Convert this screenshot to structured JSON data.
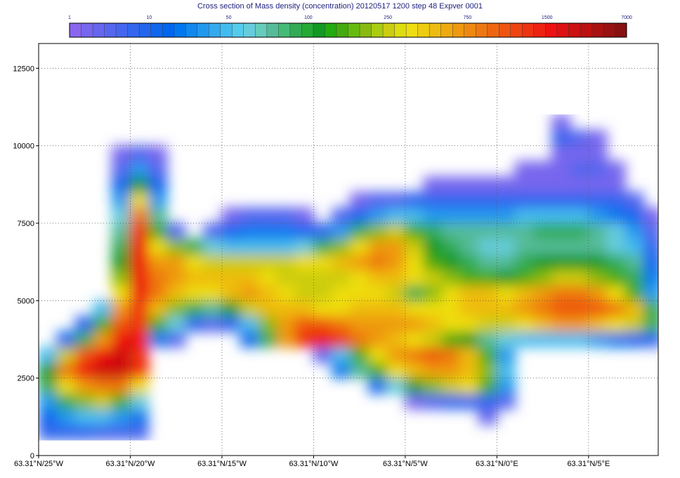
{
  "chart_data": {
    "type": "heatmap",
    "title": "Cross section of Mass density (concentration) 20120517 1200 step 48 Expver 0001",
    "xlabel": "",
    "ylabel": "",
    "x_ticks": [
      {
        "value": -25,
        "label": "63.31°N/25°W"
      },
      {
        "value": -20,
        "label": "63.31°N/20°W"
      },
      {
        "value": -15,
        "label": "63.31°N/15°W"
      },
      {
        "value": -10,
        "label": "63.31°N/10°W"
      },
      {
        "value": -5,
        "label": "63.31°N/5°W"
      },
      {
        "value": 0,
        "label": "63.31°N/0°E"
      },
      {
        "value": 5,
        "label": "63.31°N/5°E"
      }
    ],
    "xlim": [
      -25,
      8.8
    ],
    "y_ticks": [
      0,
      2500,
      5000,
      7500,
      10000,
      12500
    ],
    "ylim": [
      0,
      13300
    ],
    "grid": true,
    "colorbar": {
      "labels": [
        "1",
        "10",
        "50",
        "100",
        "250",
        "750",
        "1500",
        "7000"
      ],
      "colors": [
        "#8866ee",
        "#7766ee",
        "#6666ee",
        "#5566ee",
        "#4466ee",
        "#3366ee",
        "#2266ee",
        "#1166ee",
        "#0066ee",
        "#0077ee",
        "#1188ee",
        "#2299ee",
        "#33aaee",
        "#44bbee",
        "#55ccee",
        "#66ccdd",
        "#66ccbb",
        "#55bb99",
        "#44bb77",
        "#33aa55",
        "#22aa33",
        "#119922",
        "#22aa11",
        "#44aa11",
        "#66bb11",
        "#88bb11",
        "#aacc11",
        "#cccc11",
        "#dddd11",
        "#eedd11",
        "#eecc11",
        "#eebb11",
        "#eeaa11",
        "#ee9911",
        "#ee8811",
        "#ee7711",
        "#ee6611",
        "#ee5511",
        "#ee4411",
        "#ee3311",
        "#ee2211",
        "#ee1111",
        "#dd1111",
        "#cc1111",
        "#bb1111",
        "#aa1111",
        "#991111",
        "#881111"
      ]
    },
    "cells_x": [
      -25,
      -24,
      -23,
      -22,
      -21,
      -20,
      -19,
      -18,
      -17,
      -16,
      -15,
      -14,
      -13,
      -12,
      -11,
      -10,
      -9,
      -8,
      -7,
      -6,
      -5,
      -4,
      -3,
      -2,
      -1,
      0,
      1,
      2,
      3,
      4,
      5,
      6,
      7,
      8
    ],
    "cells_y": [
      500,
      1000,
      1500,
      2000,
      2500,
      3000,
      3500,
      4000,
      4500,
      5000,
      5500,
      6000,
      6500,
      7000,
      7500,
      8000,
      8500,
      9000,
      9500,
      10000,
      10500
    ],
    "cells": [
      [
        6,
        6,
        6,
        5,
        5,
        5,
        0,
        0,
        0,
        0,
        0,
        0,
        0,
        0,
        0,
        0,
        0,
        0,
        0,
        0,
        0,
        0,
        0,
        0,
        0,
        0,
        0,
        0,
        0,
        0,
        0,
        0,
        0,
        0
      ],
      [
        8,
        12,
        14,
        14,
        12,
        10,
        0,
        0,
        0,
        0,
        0,
        0,
        0,
        0,
        0,
        0,
        0,
        0,
        0,
        0,
        0,
        0,
        0,
        0,
        3,
        0,
        0,
        0,
        0,
        0,
        0,
        0,
        0,
        0
      ],
      [
        12,
        20,
        26,
        28,
        24,
        16,
        0,
        0,
        0,
        0,
        0,
        0,
        0,
        0,
        0,
        0,
        0,
        0,
        0,
        0,
        2,
        4,
        6,
        6,
        6,
        4,
        0,
        0,
        0,
        0,
        0,
        0,
        0,
        0
      ],
      [
        20,
        30,
        34,
        36,
        36,
        30,
        0,
        0,
        0,
        0,
        0,
        0,
        0,
        0,
        0,
        0,
        0,
        0,
        8,
        16,
        22,
        26,
        28,
        30,
        24,
        12,
        0,
        0,
        0,
        0,
        0,
        0,
        0,
        0
      ],
      [
        22,
        36,
        42,
        44,
        44,
        40,
        0,
        0,
        0,
        0,
        0,
        0,
        0,
        0,
        0,
        0,
        10,
        18,
        24,
        30,
        32,
        34,
        34,
        32,
        26,
        14,
        0,
        0,
        0,
        0,
        0,
        0,
        0,
        0
      ],
      [
        14,
        28,
        38,
        42,
        44,
        40,
        0,
        0,
        0,
        0,
        0,
        0,
        0,
        0,
        0,
        4,
        14,
        24,
        30,
        34,
        36,
        38,
        36,
        32,
        24,
        12,
        0,
        0,
        0,
        0,
        0,
        0,
        0,
        0
      ],
      [
        0,
        8,
        20,
        34,
        42,
        42,
        10,
        4,
        0,
        0,
        0,
        8,
        20,
        34,
        40,
        42,
        40,
        36,
        34,
        32,
        30,
        28,
        24,
        22,
        18,
        16,
        14,
        14,
        14,
        14,
        12,
        10,
        8,
        6
      ],
      [
        0,
        0,
        6,
        24,
        38,
        40,
        24,
        16,
        6,
        4,
        6,
        14,
        26,
        34,
        38,
        38,
        36,
        34,
        34,
        34,
        34,
        32,
        30,
        30,
        28,
        28,
        30,
        32,
        34,
        34,
        32,
        30,
        28,
        20
      ],
      [
        0,
        0,
        0,
        14,
        34,
        40,
        32,
        26,
        20,
        18,
        22,
        28,
        32,
        32,
        32,
        30,
        30,
        32,
        32,
        32,
        30,
        30,
        30,
        32,
        32,
        32,
        34,
        36,
        38,
        38,
        38,
        36,
        32,
        20
      ],
      [
        0,
        0,
        0,
        0,
        30,
        42,
        36,
        32,
        30,
        30,
        32,
        34,
        32,
        30,
        28,
        28,
        30,
        30,
        30,
        28,
        20,
        26,
        30,
        32,
        32,
        30,
        32,
        34,
        36,
        36,
        34,
        30,
        24,
        12
      ],
      [
        0,
        0,
        0,
        0,
        26,
        42,
        36,
        34,
        32,
        32,
        32,
        32,
        30,
        28,
        28,
        28,
        28,
        30,
        32,
        32,
        30,
        28,
        26,
        24,
        24,
        22,
        24,
        26,
        28,
        28,
        26,
        24,
        20,
        10
      ],
      [
        0,
        0,
        0,
        0,
        22,
        42,
        34,
        34,
        30,
        28,
        28,
        28,
        28,
        28,
        30,
        30,
        32,
        34,
        36,
        34,
        30,
        24,
        22,
        20,
        18,
        18,
        20,
        22,
        22,
        22,
        22,
        20,
        18,
        8
      ],
      [
        0,
        0,
        0,
        0,
        20,
        42,
        30,
        26,
        20,
        16,
        14,
        14,
        14,
        14,
        16,
        20,
        26,
        30,
        34,
        34,
        28,
        22,
        20,
        18,
        16,
        16,
        18,
        18,
        18,
        18,
        18,
        16,
        14,
        6
      ],
      [
        0,
        0,
        0,
        0,
        18,
        40,
        24,
        4,
        0,
        4,
        8,
        10,
        10,
        10,
        8,
        6,
        12,
        20,
        26,
        28,
        24,
        20,
        18,
        18,
        18,
        18,
        18,
        20,
        20,
        20,
        18,
        16,
        12,
        4
      ],
      [
        0,
        0,
        0,
        0,
        16,
        36,
        18,
        0,
        0,
        0,
        2,
        4,
        4,
        4,
        2,
        0,
        4,
        8,
        12,
        14,
        14,
        12,
        12,
        12,
        12,
        12,
        14,
        14,
        14,
        14,
        12,
        10,
        8,
        2
      ],
      [
        0,
        0,
        0,
        0,
        12,
        30,
        12,
        0,
        0,
        0,
        0,
        0,
        0,
        0,
        0,
        0,
        0,
        2,
        4,
        4,
        6,
        6,
        6,
        6,
        6,
        6,
        6,
        6,
        6,
        6,
        6,
        6,
        4,
        0
      ],
      [
        0,
        0,
        0,
        0,
        8,
        22,
        8,
        0,
        0,
        0,
        0,
        0,
        0,
        0,
        0,
        0,
        0,
        0,
        0,
        0,
        0,
        2,
        2,
        2,
        2,
        2,
        2,
        2,
        2,
        2,
        2,
        2,
        0,
        0
      ],
      [
        0,
        0,
        0,
        0,
        4,
        12,
        4,
        0,
        0,
        0,
        0,
        0,
        0,
        0,
        0,
        0,
        0,
        0,
        0,
        0,
        0,
        0,
        0,
        0,
        0,
        0,
        2,
        2,
        2,
        4,
        4,
        2,
        0,
        0
      ],
      [
        0,
        0,
        0,
        0,
        2,
        4,
        2,
        0,
        0,
        0,
        0,
        0,
        0,
        0,
        0,
        0,
        0,
        0,
        0,
        0,
        0,
        0,
        0,
        0,
        0,
        0,
        0,
        0,
        2,
        2,
        2,
        0,
        0,
        0
      ],
      [
        0,
        0,
        0,
        0,
        0,
        0,
        0,
        0,
        0,
        0,
        0,
        0,
        0,
        0,
        0,
        0,
        0,
        0,
        0,
        0,
        0,
        0,
        0,
        0,
        0,
        0,
        0,
        0,
        6,
        4,
        2,
        0,
        0,
        0
      ],
      [
        0,
        0,
        0,
        0,
        0,
        0,
        0,
        0,
        0,
        0,
        0,
        0,
        0,
        0,
        0,
        0,
        0,
        0,
        0,
        0,
        0,
        0,
        0,
        0,
        0,
        0,
        0,
        0,
        2,
        0,
        0,
        0,
        0,
        0
      ]
    ]
  }
}
